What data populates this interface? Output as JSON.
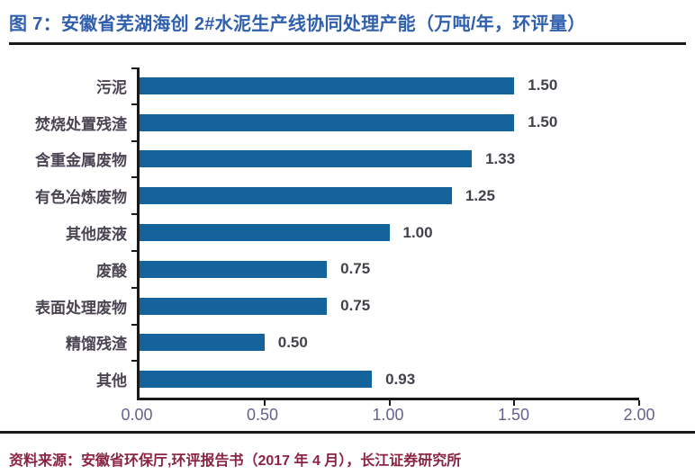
{
  "title": "图 7：安徽省芜湖海创 2#水泥生产线协同处理产能（万吨/年，环评量）",
  "footer": {
    "source_label": "资料来源：",
    "source_text": "安徽省环保厅,环评报告书（2017 年 4 月），长江证券研究所"
  },
  "colors": {
    "bar": "#14639C",
    "title": "#2F5FAD",
    "category_label": "#4B4453",
    "value_label": "#45414B",
    "axis_label": "#63638C",
    "footer": "#8B2342",
    "axis_line": "#1A1A1A"
  },
  "chart_data": {
    "type": "bar",
    "orientation": "horizontal",
    "title": "安徽省芜湖海创 2#水泥生产线协同处理产能",
    "unit": "万吨/年，环评量",
    "categories": [
      "污泥",
      "焚烧处置残渣",
      "含重金属废物",
      "有色冶炼废物",
      "其他废液",
      "废酸",
      "表面处理废物",
      "精馏残渣",
      "其他"
    ],
    "values": [
      1.5,
      1.5,
      1.33,
      1.25,
      1.0,
      0.75,
      0.75,
      0.5,
      0.93
    ],
    "value_labels": [
      "1.50",
      "1.50",
      "1.33",
      "1.25",
      "1.00",
      "0.75",
      "0.75",
      "0.50",
      "0.93"
    ],
    "x_ticks": [
      "0.00",
      "0.50",
      "1.00",
      "1.50",
      "2.00"
    ],
    "x_tick_values": [
      0.0,
      0.5,
      1.0,
      1.5,
      2.0
    ],
    "xlim": [
      0,
      2.0
    ],
    "xlabel": "",
    "ylabel": "",
    "grid": false,
    "legend": false,
    "data_labels": true
  }
}
